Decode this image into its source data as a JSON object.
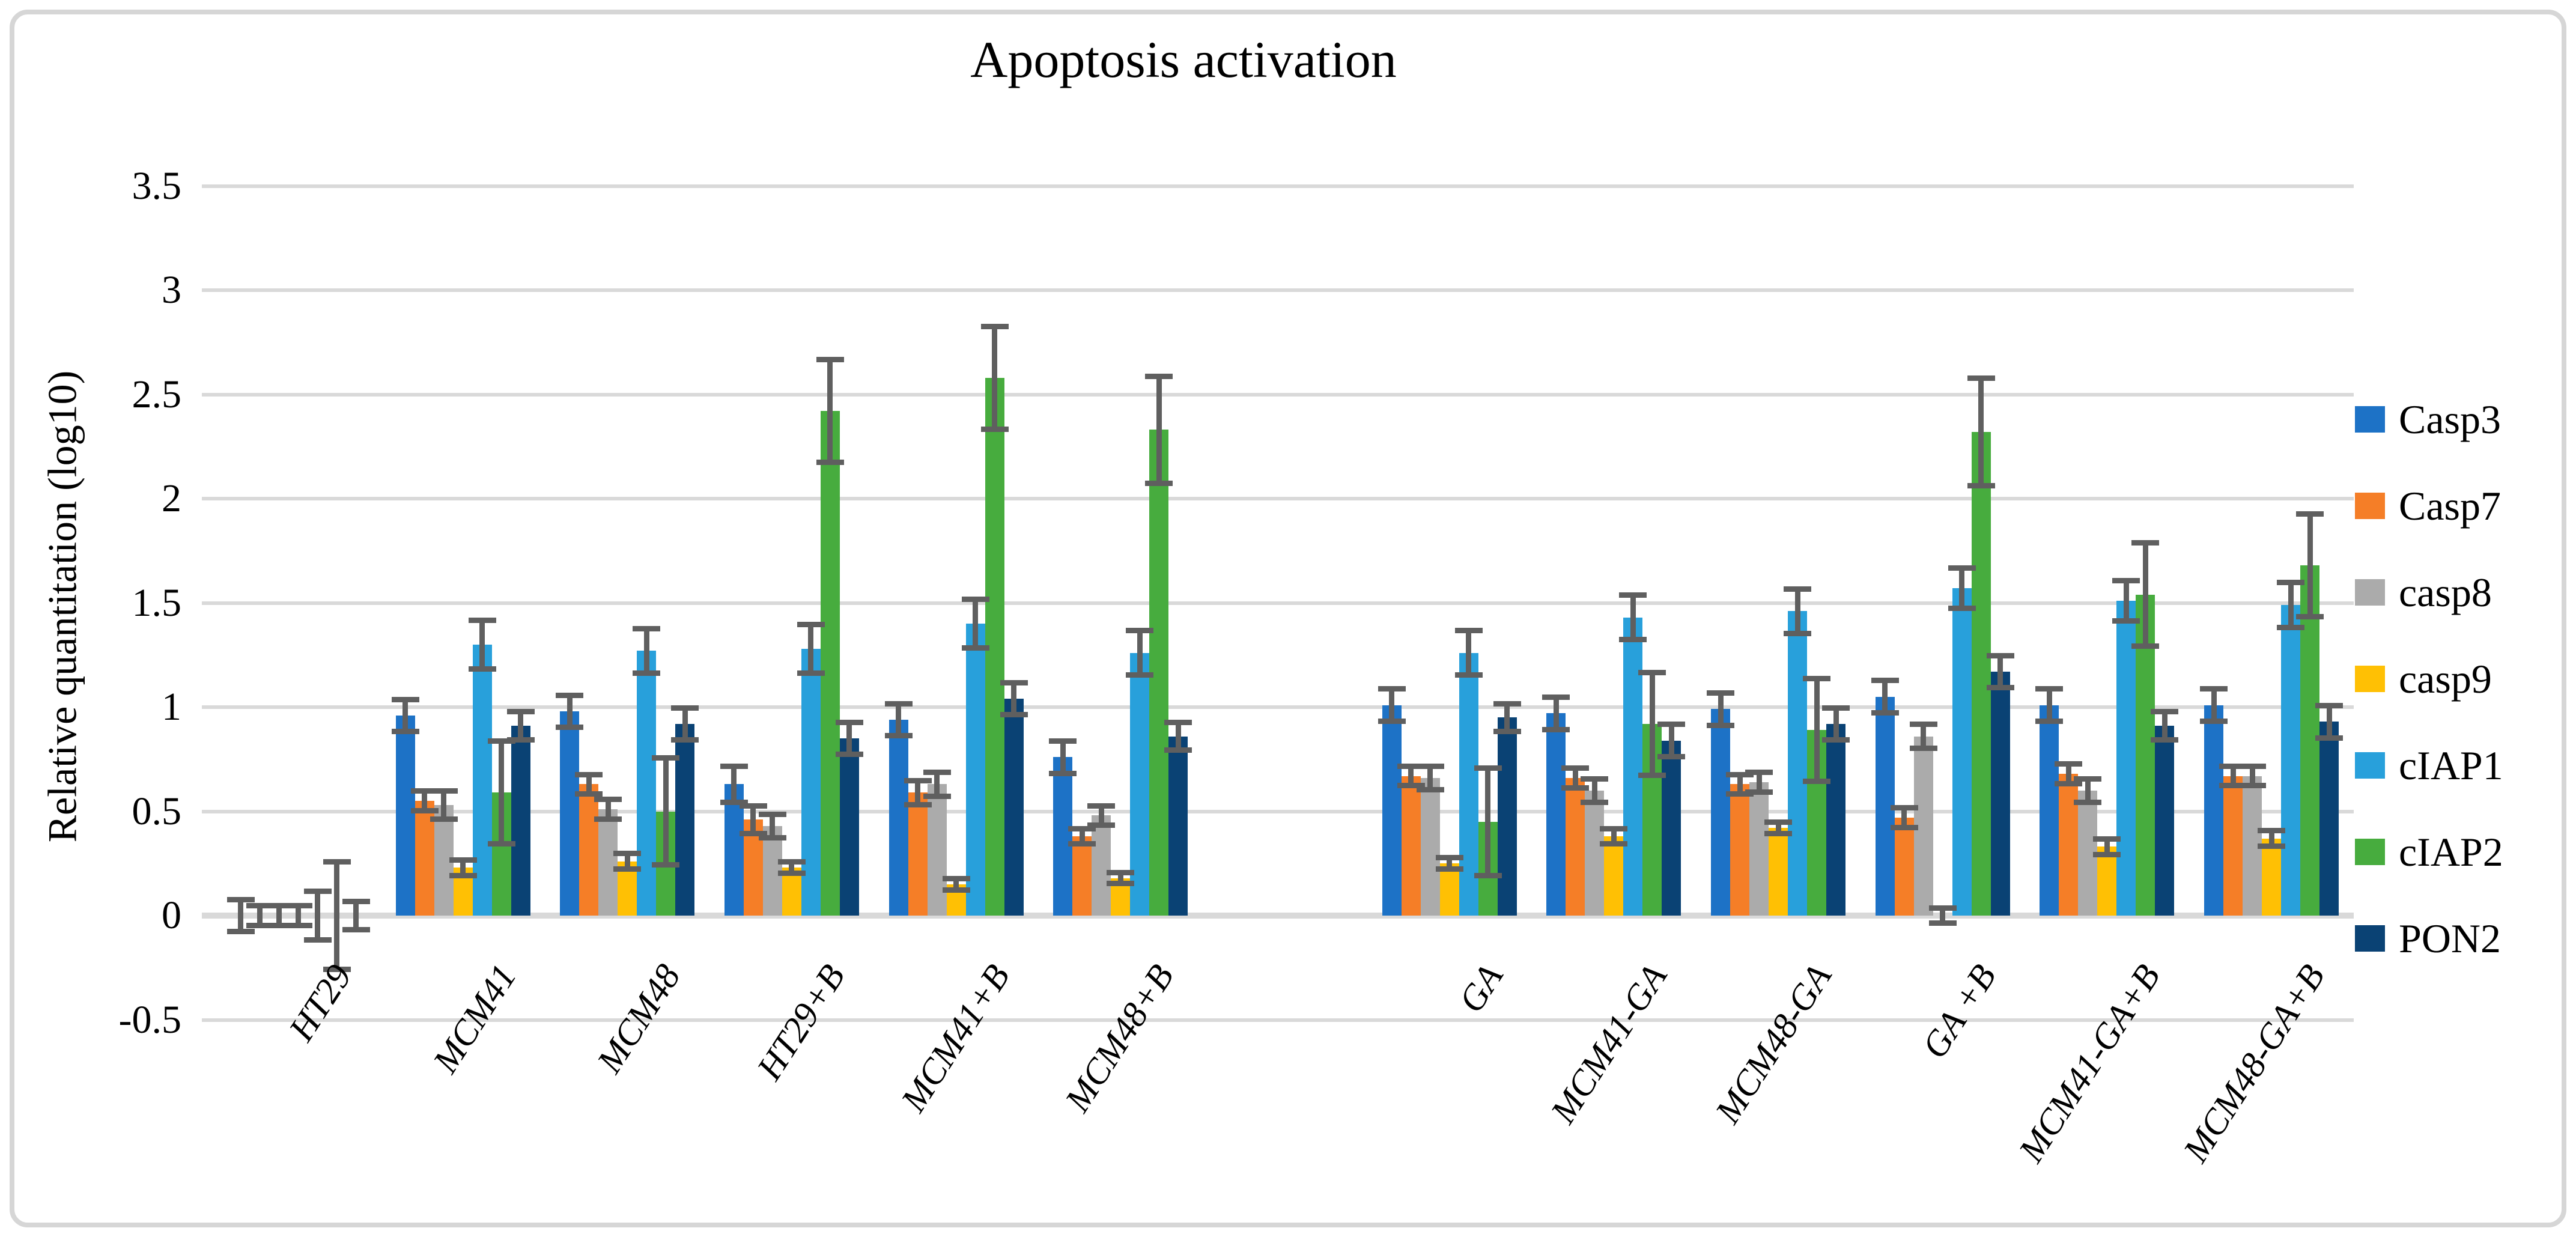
{
  "title": "Apoptosis activation",
  "y_axis": {
    "label": "Relative quantitation (log10)",
    "ticks": [
      "3.5",
      "3",
      "2.5",
      "2",
      "1.5",
      "1",
      "0.5",
      "0",
      "-0.5"
    ],
    "min": -0.5,
    "max": 3.5,
    "step": 0.5
  },
  "chart_data": {
    "type": "bar",
    "title": "Apoptosis activation",
    "xlabel": "",
    "ylabel": "Relative quantitation (log10)",
    "ylim": [
      -0.5,
      3.5
    ],
    "grid": true,
    "legend_position": "right",
    "error_bars": true,
    "gap_after_category_index": 5,
    "categories": [
      "HT29",
      "MCM41",
      "MCM48",
      "HT29+B",
      "MCM41+B",
      "MCM48+B",
      "GA",
      "MCM41-GA",
      "MCM48-GA",
      "GA +B",
      "MCM41-GA+B",
      "MCM48-GA+B"
    ],
    "series": [
      {
        "name": "Casp3",
        "color": "#1d72c6",
        "values": [
          0.0,
          0.96,
          0.98,
          0.63,
          0.94,
          0.76,
          1.01,
          0.97,
          0.99,
          1.05,
          1.01,
          1.01
        ],
        "errors": [
          0.09,
          0.09,
          0.09,
          0.1,
          0.09,
          0.09,
          0.09,
          0.09,
          0.09,
          0.09,
          0.09,
          0.09
        ]
      },
      {
        "name": "Casp7",
        "color": "#f57e27",
        "values": [
          0.0,
          0.55,
          0.63,
          0.46,
          0.59,
          0.38,
          0.67,
          0.66,
          0.63,
          0.47,
          0.68,
          0.67
        ],
        "errors": [
          0.06,
          0.06,
          0.06,
          0.08,
          0.07,
          0.05,
          0.06,
          0.06,
          0.06,
          0.06,
          0.06,
          0.06
        ]
      },
      {
        "name": "casp8",
        "color": "#ababab",
        "values": [
          0.0,
          0.53,
          0.51,
          0.43,
          0.63,
          0.48,
          0.66,
          0.6,
          0.64,
          0.86,
          0.6,
          0.67
        ],
        "errors": [
          0.06,
          0.08,
          0.06,
          0.07,
          0.07,
          0.06,
          0.07,
          0.07,
          0.06,
          0.07,
          0.07,
          0.06
        ]
      },
      {
        "name": "casp9",
        "color": "#ffc004",
        "values": [
          0.0,
          0.23,
          0.26,
          0.23,
          0.15,
          0.18,
          0.25,
          0.38,
          0.42,
          0.0,
          0.33,
          0.37
        ],
        "errors": [
          0.06,
          0.05,
          0.05,
          0.04,
          0.04,
          0.04,
          0.04,
          0.05,
          0.04,
          0.05,
          0.05,
          0.05
        ]
      },
      {
        "name": "cIAP1",
        "color": "#28a0db",
        "values": [
          0.0,
          1.3,
          1.27,
          1.28,
          1.4,
          1.26,
          1.26,
          1.43,
          1.46,
          1.57,
          1.51,
          1.49
        ],
        "errors": [
          0.13,
          0.13,
          0.12,
          0.13,
          0.13,
          0.12,
          0.12,
          0.12,
          0.12,
          0.11,
          0.11,
          0.12
        ]
      },
      {
        "name": "cIAP2",
        "color": "#47ac3e",
        "values": [
          0.0,
          0.59,
          0.5,
          2.42,
          2.58,
          2.33,
          0.45,
          0.92,
          0.89,
          2.32,
          1.54,
          1.68
        ],
        "errors": [
          0.27,
          0.26,
          0.27,
          0.26,
          0.26,
          0.27,
          0.27,
          0.26,
          0.26,
          0.27,
          0.26,
          0.26
        ]
      },
      {
        "name": "PON2",
        "color": "#0a4274",
        "values": [
          0.0,
          0.91,
          0.92,
          0.85,
          1.04,
          0.86,
          0.95,
          0.84,
          0.92,
          1.17,
          0.91,
          0.93
        ],
        "errors": [
          0.08,
          0.08,
          0.09,
          0.09,
          0.09,
          0.08,
          0.08,
          0.09,
          0.09,
          0.09,
          0.08,
          0.09
        ]
      }
    ]
  }
}
